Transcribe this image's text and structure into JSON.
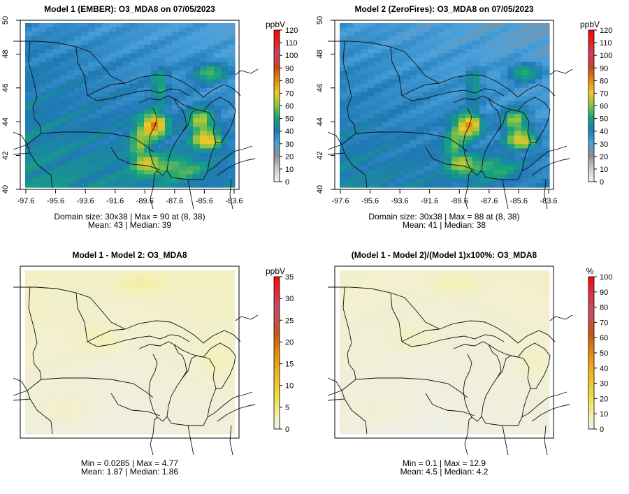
{
  "chart_data": [
    {
      "type": "heatmap",
      "title": "Model 1 (EMBER): O3_MDA8 on 07/05/2023",
      "x_ticks": [
        "-97.6",
        "-95.6",
        "-93.6",
        "-91.6",
        "-89.6",
        "-87.6",
        "-85.6",
        "-83.6"
      ],
      "y_ticks": [
        "40",
        "42",
        "44",
        "46",
        "48",
        "50"
      ],
      "xlim": [
        -97.6,
        -83.6
      ],
      "ylim": [
        40,
        50
      ],
      "grid": "30x38",
      "colorbar": {
        "unit": "ppbV",
        "min": 0,
        "max": 120,
        "ticks": [
          "0",
          "10",
          "20",
          "30",
          "40",
          "50",
          "60",
          "70",
          "80",
          "90",
          "100",
          "110",
          "120"
        ]
      },
      "summary": [
        "Domain size: 30x38 | Max = 90 at (8, 38)",
        "Mean: 43 |  Median: 39"
      ],
      "stats": {
        "max": 90,
        "mean": 43,
        "median": 39
      }
    },
    {
      "type": "heatmap",
      "title": "Model 2 (ZeroFires): O3_MDA8 on 07/05/2023",
      "x_ticks": [
        "-97.6",
        "-95.6",
        "-93.6",
        "-91.6",
        "-89.6",
        "-87.6",
        "-85.6",
        "-83.6"
      ],
      "y_ticks": [
        "40",
        "42",
        "44",
        "46",
        "48",
        "50"
      ],
      "xlim": [
        -97.6,
        -83.6
      ],
      "ylim": [
        40,
        50
      ],
      "grid": "30x38",
      "colorbar": {
        "unit": "ppbV",
        "min": 0,
        "max": 120,
        "ticks": [
          "0",
          "10",
          "20",
          "30",
          "40",
          "50",
          "60",
          "70",
          "80",
          "90",
          "100",
          "110",
          "120"
        ]
      },
      "summary": [
        "Domain size: 30x38 | Max = 88 at (8, 38)",
        "Mean: 41 |  Median: 38"
      ],
      "stats": {
        "max": 88,
        "mean": 41,
        "median": 38
      }
    },
    {
      "type": "heatmap",
      "title": "Model 1 - Model 2: O3_MDA8",
      "colorbar": {
        "unit": "ppbV",
        "min": 0,
        "max": 35,
        "ticks": [
          "0",
          "5",
          "10",
          "15",
          "20",
          "25",
          "30",
          "35"
        ]
      },
      "summary": [
        "Min = 0.0285 | Max = 4.77",
        "Mean: 1.87 |  Median: 1.86"
      ],
      "stats": {
        "min": 0.0285,
        "max": 4.77,
        "mean": 1.87,
        "median": 1.86
      }
    },
    {
      "type": "heatmap",
      "title": "(Model 1 - Model 2)/(Model 1)x100%: O3_MDA8",
      "colorbar": {
        "unit": "%",
        "min": 0,
        "max": 100,
        "ticks": [
          "0",
          "10",
          "20",
          "30",
          "40",
          "50",
          "60",
          "70",
          "80",
          "90",
          "100"
        ]
      },
      "summary": [
        "Min = 0.1 | Max = 12.9",
        "Mean: 4.5 |  Median: 4.2"
      ],
      "stats": {
        "min": 0.1,
        "max": 12.9,
        "mean": 4.5,
        "median": 4.2
      }
    }
  ]
}
